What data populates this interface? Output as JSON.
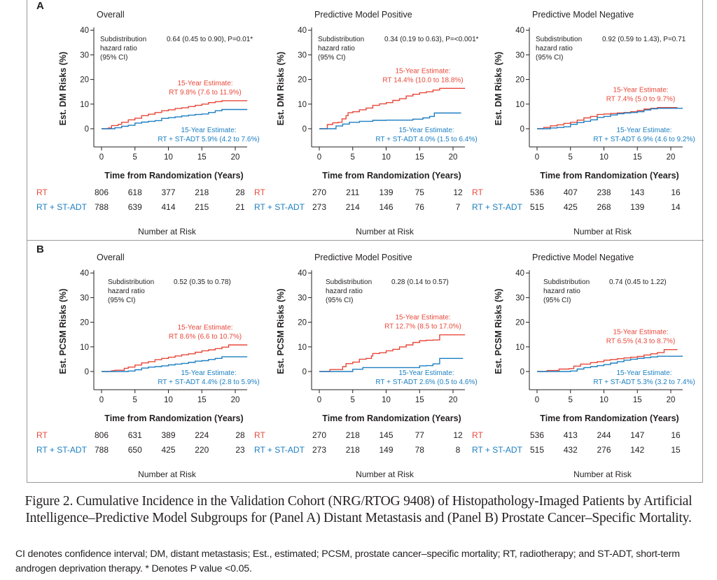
{
  "colors": {
    "rt": "#E8483A",
    "st_adt": "#1B7FC1",
    "axis": "#231f20"
  },
  "panels": [
    {
      "letter": "A"
    },
    {
      "letter": "B"
    }
  ],
  "caption": {
    "title": "Figure 2. Cumulative Incidence in the Validation Cohort (NRG/RTOG 9408) of Histopathology-Imaged Patients by Artificial Intelligence–Predictive Model Subgroups for (Panel A) Distant Metastasis and (Panel B) Prostate Cancer–Specific Mortality.",
    "note": "CI denotes confidence interval; DM, distant metastasis; Est., estimated; PCSM, prostate cancer–specific mortality; RT, radiotherapy; and ST-ADT, short-term androgen deprivation therapy. * Denotes P value <0.05."
  },
  "chart_data": [
    {
      "type": "line",
      "panel": "A",
      "title": "Overall",
      "ylabel": "Est. DM Risks (%)",
      "xlabel": "Time from Randomization (Years)",
      "ylim": [
        0,
        40
      ],
      "yticks": [
        0,
        10,
        20,
        30,
        40
      ],
      "xlim": [
        0,
        22
      ],
      "xticks": [
        0,
        5,
        10,
        15,
        20
      ],
      "hr_label": [
        "Subdistribution",
        "hazard ratio",
        "(95% CI)"
      ],
      "hr_value": "0.64 (0.45 to 0.90), P=0.01*",
      "estimates": {
        "rt": [
          "15-Year Estimate:",
          "RT 9.8% (7.6 to 11.9%)"
        ],
        "st_adt": [
          "15-Year Estimate:",
          "RT + ST-ADT 5.9% (4.2 to 7.6%)"
        ]
      },
      "series": [
        {
          "name": "RT",
          "x": [
            0,
            1,
            1.5,
            2.5,
            3,
            4,
            5,
            6,
            7,
            8,
            9,
            10,
            11,
            12,
            13,
            14,
            15,
            16,
            17,
            18,
            21.8
          ],
          "y": [
            0,
            0.3,
            1.3,
            1.8,
            2.6,
            3.6,
            4.3,
            5.3,
            5.9,
            6.6,
            7.3,
            7.7,
            8.2,
            8.5,
            9.0,
            9.5,
            10.0,
            10.6,
            11.0,
            11.4,
            11.4
          ]
        },
        {
          "name": "RT + ST-ADT",
          "x": [
            0,
            1,
            2,
            3,
            4,
            5,
            6,
            7,
            8,
            9,
            10,
            11,
            12,
            13,
            14,
            15,
            16,
            17,
            18,
            21.8
          ],
          "y": [
            0,
            0,
            0.4,
            1.0,
            1.4,
            2.3,
            2.7,
            3.0,
            3.3,
            4.2,
            4.5,
            4.8,
            5.2,
            5.5,
            5.8,
            6.0,
            6.6,
            7.3,
            7.8,
            7.8
          ]
        }
      ],
      "risk_table": {
        "label": "Number at Risk",
        "rows": [
          {
            "name": "RT",
            "values": [
              806,
              618,
              377,
              218,
              28
            ]
          },
          {
            "name": "RT + ST-ADT",
            "values": [
              788,
              639,
              414,
              215,
              21
            ]
          }
        ]
      }
    },
    {
      "type": "line",
      "panel": "A",
      "title": "Predictive Model Positive",
      "ylabel": "Est. DM Risks (%)",
      "xlabel": "Time from Randomization (Years)",
      "ylim": [
        0,
        40
      ],
      "yticks": [
        0,
        10,
        20,
        30,
        40
      ],
      "xlim": [
        0,
        22
      ],
      "xticks": [
        0,
        5,
        10,
        15,
        20
      ],
      "hr_label": [
        "Subdistribution",
        "hazard ratio",
        "(95% CI)"
      ],
      "hr_value": "0.34 (0.19 to 0.63), P=<0.001*",
      "estimates": {
        "rt": [
          "15-Year Estimate:",
          "RT 14.4% (10.0 to 18.8%)"
        ],
        "st_adt": [
          "15-Year Estimate:",
          "RT + ST-ADT 4.0% (1.5 to 6.4%)"
        ]
      },
      "series": [
        {
          "name": "RT",
          "x": [
            0,
            0.8,
            1.2,
            2,
            2.8,
            3.4,
            4,
            4.3,
            5,
            6,
            7,
            8,
            9,
            10,
            11,
            12,
            13,
            14,
            15,
            16,
            17,
            18,
            21.8
          ],
          "y": [
            0,
            0,
            1.7,
            2.4,
            2.6,
            4.0,
            5.3,
            6.5,
            6.9,
            7.7,
            8.4,
            9.5,
            10.1,
            10.6,
            11.5,
            12.2,
            13.3,
            14.0,
            14.6,
            15.0,
            15.7,
            16.4,
            16.4
          ]
        },
        {
          "name": "RT + ST-ADT",
          "x": [
            0,
            2,
            2.5,
            3.5,
            4.5,
            6,
            8,
            10,
            12,
            14,
            15.5,
            16.5,
            17.2,
            21.2
          ],
          "y": [
            0,
            0,
            1.1,
            1.9,
            2.6,
            3.0,
            3.4,
            3.5,
            3.5,
            3.9,
            4.4,
            5.0,
            6.4,
            6.4
          ]
        }
      ],
      "risk_table": {
        "label": "Number at Risk",
        "rows": [
          {
            "name": "RT",
            "values": [
              270,
              211,
              139,
              75,
              12
            ]
          },
          {
            "name": "RT + ST-ADT",
            "values": [
              273,
              214,
              146,
              76,
              7
            ]
          }
        ]
      }
    },
    {
      "type": "line",
      "panel": "A",
      "title": "Predictive Model Negative",
      "ylabel": "Est. DM Risks (%)",
      "xlabel": "Time from Randomization (Years)",
      "ylim": [
        0,
        40
      ],
      "yticks": [
        0,
        10,
        20,
        30,
        40
      ],
      "xlim": [
        0,
        22
      ],
      "xticks": [
        0,
        5,
        10,
        15,
        20
      ],
      "hr_label": [
        "Subdistribution",
        "hazard ratio",
        "(95% CI)"
      ],
      "hr_value": "0.92 (0.59 to 1.43), P=0.71",
      "estimates": {
        "rt": [
          "15-Year Estimate:",
          "RT 7.4% (5.0 to 9.7%)"
        ],
        "st_adt": [
          "15-Year Estimate:",
          "RT + ST-ADT 6.9% (4.6 to 9.2%)"
        ]
      },
      "series": [
        {
          "name": "RT",
          "x": [
            0,
            1,
            2,
            3,
            4,
            5,
            6,
            7,
            8,
            9,
            10,
            11,
            12,
            13,
            14,
            15,
            16,
            17,
            18,
            21
          ],
          "y": [
            0,
            0.5,
            1.2,
            1.6,
            2.2,
            2.6,
            3.5,
            4.4,
            5.0,
            5.8,
            6.0,
            6.2,
            6.4,
            6.6,
            6.9,
            7.4,
            8.0,
            8.3,
            8.6,
            8.6
          ]
        },
        {
          "name": "RT + ST-ADT",
          "x": [
            0,
            1,
            2,
            3,
            4,
            5,
            6,
            7,
            8,
            9,
            10,
            11,
            12,
            13,
            14,
            15,
            16,
            17,
            18,
            21.8
          ],
          "y": [
            0,
            0,
            0.3,
            0.5,
            0.8,
            1.8,
            2.5,
            3.0,
            3.6,
            4.6,
            5.0,
            5.6,
            6.1,
            6.4,
            6.6,
            6.9,
            7.6,
            8.1,
            8.3,
            8.3
          ]
        }
      ],
      "risk_table": {
        "label": "Number at Risk",
        "rows": [
          {
            "name": "RT",
            "values": [
              536,
              407,
              238,
              143,
              16
            ]
          },
          {
            "name": "RT + ST-ADT",
            "values": [
              515,
              425,
              268,
              139,
              14
            ]
          }
        ]
      }
    },
    {
      "type": "line",
      "panel": "B",
      "title": "Overall",
      "ylabel": "Est. PCSM Risks (%)",
      "xlabel": "Time from Randomization (Years)",
      "ylim": [
        0,
        40
      ],
      "yticks": [
        0,
        10,
        20,
        30,
        40
      ],
      "xlim": [
        0,
        22
      ],
      "xticks": [
        0,
        5,
        10,
        15,
        20
      ],
      "hr_label": [
        "Subdistribution",
        "hazard ratio",
        "(95% CI)"
      ],
      "hr_value": "0.52 (0.35 to 0.78)",
      "estimates": {
        "rt": [
          "15-Year Estimate:",
          "RT 8.6% (6.6 to 10.7%)"
        ],
        "st_adt": [
          "15-Year Estimate:",
          "RT + ST-ADT 4.4% (2.8 to 5.9%)"
        ]
      },
      "series": [
        {
          "name": "RT",
          "x": [
            0,
            1.5,
            2,
            3.2,
            3.4,
            4,
            5,
            6,
            7,
            8,
            9,
            10,
            11,
            12,
            13,
            14,
            15,
            16,
            17,
            18,
            19,
            21.8
          ],
          "y": [
            0,
            0.3,
            0.5,
            0.5,
            1.3,
            1.8,
            2.6,
            3.5,
            4.0,
            4.8,
            5.3,
            5.8,
            6.3,
            6.8,
            7.2,
            7.8,
            8.4,
            8.8,
            9.3,
            9.9,
            10.8,
            10.8
          ]
        },
        {
          "name": "RT + ST-ADT",
          "x": [
            0,
            2,
            4,
            5,
            6,
            7,
            8,
            9,
            10,
            11,
            12,
            13,
            14,
            15,
            16,
            17,
            18,
            21.8
          ],
          "y": [
            0,
            0,
            0.2,
            0.7,
            1.4,
            1.8,
            2.0,
            2.3,
            2.7,
            3.0,
            3.3,
            3.7,
            4.2,
            4.4,
            4.9,
            5.3,
            6.0,
            6.0
          ]
        }
      ],
      "risk_table": {
        "label": "Number at Risk",
        "rows": [
          {
            "name": "RT",
            "values": [
              806,
              631,
              389,
              224,
              28
            ]
          },
          {
            "name": "RT + ST-ADT",
            "values": [
              788,
              650,
              425,
              220,
              23
            ]
          }
        ]
      }
    },
    {
      "type": "line",
      "panel": "B",
      "title": "Predictive Model Positive",
      "ylabel": "Est. PCSM Risks (%)",
      "xlabel": "Time from Randomization (Years)",
      "ylim": [
        0,
        40
      ],
      "yticks": [
        0,
        10,
        20,
        30,
        40
      ],
      "xlim": [
        0,
        22
      ],
      "xticks": [
        0,
        5,
        10,
        15,
        20
      ],
      "hr_label": [
        "Subdistribution",
        "hazard ratio",
        "(95% CI)"
      ],
      "hr_value": "0.28 (0.14 to 0.57)",
      "estimates": {
        "rt": [
          "15-Year Estimate:",
          "RT 12.7% (8.5 to 17.0%)"
        ],
        "st_adt": [
          "15-Year Estimate:",
          "RT + ST-ADT 2.6% (0.5 to 4.6%)"
        ]
      },
      "series": [
        {
          "name": "RT",
          "x": [
            0,
            1.6,
            3,
            3.5,
            4,
            5,
            6,
            7,
            7.8,
            8,
            9,
            10,
            11,
            12,
            13,
            14,
            15,
            16,
            17,
            18,
            21.8
          ],
          "y": [
            0,
            0.8,
            0.8,
            2.0,
            3.2,
            3.8,
            5.0,
            5.3,
            6.3,
            7.3,
            7.6,
            8.4,
            9.0,
            10.0,
            10.8,
            11.8,
            12.5,
            12.7,
            12.8,
            14.9,
            14.9
          ]
        },
        {
          "name": "RT + ST-ADT",
          "x": [
            0,
            4,
            5,
            6.5,
            10,
            13.5,
            15,
            16,
            17,
            18,
            21.5
          ],
          "y": [
            0,
            0,
            0.9,
            1.6,
            1.6,
            1.6,
            2.3,
            2.4,
            3.1,
            5.3,
            5.3
          ]
        }
      ],
      "risk_table": {
        "label": "Number at Risk",
        "rows": [
          {
            "name": "RT",
            "values": [
              270,
              218,
              145,
              77,
              12
            ]
          },
          {
            "name": "RT + ST-ADT",
            "values": [
              273,
              218,
              149,
              78,
              8
            ]
          }
        ]
      }
    },
    {
      "type": "line",
      "panel": "B",
      "title": "Predictive Model Negative",
      "ylabel": "Est. PCSM Risks (%)",
      "xlabel": "Time from Randomization (Years)",
      "ylim": [
        0,
        40
      ],
      "yticks": [
        0,
        10,
        20,
        30,
        40
      ],
      "xlim": [
        0,
        22
      ],
      "xticks": [
        0,
        5,
        10,
        15,
        20
      ],
      "hr_label": [
        "Subdistribution",
        "hazard ratio",
        "(95% CI)"
      ],
      "hr_value": "0.74 (0.45 to 1.22)",
      "estimates": {
        "rt": [
          "15-Year Estimate:",
          "RT 6.5% (4.3 to 8.7%)"
        ],
        "st_adt": [
          "15-Year Estimate:",
          "RT + ST-ADT 5.3% (3.2 to 7.4%)"
        ]
      },
      "series": [
        {
          "name": "RT",
          "x": [
            0,
            1.5,
            3.3,
            4.8,
            5.5,
            6.5,
            8,
            9,
            10,
            11,
            12,
            13,
            14,
            15,
            16,
            17,
            18,
            19,
            21
          ],
          "y": [
            0,
            0.4,
            1.0,
            1.2,
            2.2,
            3.0,
            3.6,
            4.0,
            4.6,
            4.9,
            5.2,
            5.5,
            5.8,
            6.1,
            6.7,
            7.2,
            7.7,
            8.9,
            8.9
          ]
        },
        {
          "name": "RT + ST-ADT",
          "x": [
            0,
            4,
            5,
            6,
            7,
            8,
            9,
            10,
            11,
            12,
            13,
            14,
            15,
            16,
            17,
            18,
            21.8
          ],
          "y": [
            0,
            0,
            0.2,
            1.0,
            1.6,
            2.0,
            2.4,
            2.8,
            3.4,
            4.0,
            4.6,
            5.0,
            5.3,
            5.6,
            5.9,
            6.2,
            6.2
          ]
        }
      ],
      "risk_table": {
        "label": "Number at Risk",
        "rows": [
          {
            "name": "RT",
            "values": [
              536,
              413,
              244,
              147,
              16
            ]
          },
          {
            "name": "RT + ST-ADT",
            "values": [
              515,
              432,
              276,
              142,
              15
            ]
          }
        ]
      }
    }
  ]
}
